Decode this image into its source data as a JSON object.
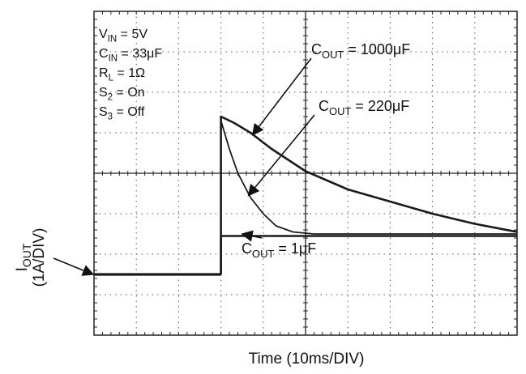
{
  "chart_data": {
    "type": "line",
    "title": "",
    "xlabel": "Time (10ms/DIV)",
    "ylabel": {
      "main": "I",
      "sub": "OUT",
      "scale": "(1A/DIV)"
    },
    "grid": true,
    "divisions": {
      "x": 10,
      "y": 8
    },
    "xlim": [
      0,
      10
    ],
    "ylim": [
      0,
      8
    ],
    "conditions": [
      {
        "main": "V",
        "sub": "IN",
        "rest": " = 5V"
      },
      {
        "main": "C",
        "sub": "IN",
        "rest": " = 33μF"
      },
      {
        "main": "R",
        "sub": "L",
        "rest": " = 1Ω"
      },
      {
        "main": "S",
        "sub": "2",
        "rest": " = On"
      },
      {
        "main": "S",
        "sub": "3",
        "rest": " = Off"
      }
    ],
    "baseline": {
      "x": [
        0,
        3.0
      ],
      "y": [
        1.5,
        1.5
      ]
    },
    "series": [
      {
        "name": "C_OUT = 1000μF",
        "x": [
          3.0,
          3.0,
          3.3,
          3.7,
          4.2,
          5.0,
          6.0,
          7.0,
          8.0,
          9.0,
          10.0
        ],
        "y": [
          1.5,
          5.4,
          5.25,
          5.0,
          4.6,
          4.05,
          3.6,
          3.3,
          3.0,
          2.75,
          2.55
        ]
      },
      {
        "name": "C_OUT = 220μF",
        "x": [
          3.0,
          3.0,
          3.2,
          3.4,
          3.7,
          4.0,
          4.3,
          4.7,
          5.2,
          6.0,
          10.0
        ],
        "y": [
          1.5,
          5.3,
          4.6,
          4.0,
          3.4,
          3.0,
          2.7,
          2.55,
          2.5,
          2.5,
          2.5
        ]
      },
      {
        "name": "C_OUT = 1μF",
        "x": [
          3.0,
          3.0,
          10.0
        ],
        "y": [
          1.5,
          2.45,
          2.45
        ]
      }
    ],
    "annotations": [
      {
        "main": "C",
        "sub": "OUT",
        "rest": " = 1000μF",
        "series": 0
      },
      {
        "main": "C",
        "sub": "OUT",
        "rest": " = 220μF",
        "series": 1
      },
      {
        "main": "C",
        "sub": "OUT",
        "rest": " = 1μF",
        "series": 2
      }
    ]
  }
}
